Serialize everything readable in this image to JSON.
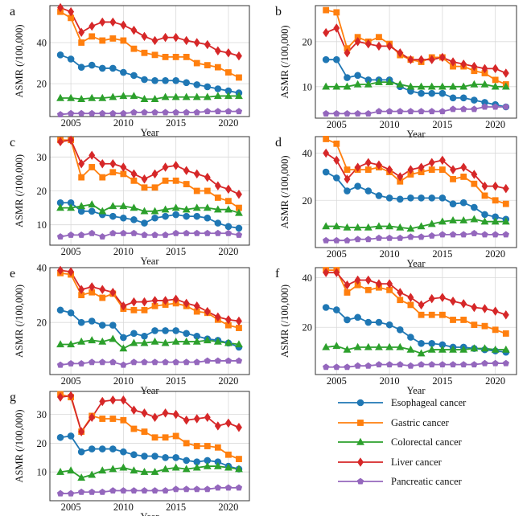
{
  "colors": {
    "Esophageal cancer": "#1f77b4",
    "Gastric cancer": "#ff7f0e",
    "Colorectal cancer": "#2ca02c",
    "Liver cancer": "#d62728",
    "Pancreatic cancer": "#9467bd"
  },
  "markers": {
    "Esophageal cancer": "circle",
    "Gastric cancer": "square",
    "Colorectal cancer": "triangle",
    "Liver cancer": "diamond",
    "Pancreatic cancer": "pentagon"
  },
  "legend": {
    "items": [
      "Esophageal cancer",
      "Gastric cancer",
      "Colorectal cancer",
      "Liver cancer",
      "Pancreatic cancer"
    ]
  },
  "chart_data": [
    {
      "type": "line",
      "panel_label": "a",
      "xlabel": "Year",
      "ylabel": "ASMR  (/100,000)",
      "xlim": [
        2003,
        2022
      ],
      "ylim": [
        4,
        58
      ],
      "xticks": [
        2005,
        2010,
        2015,
        2020
      ],
      "yticks": [
        20,
        40
      ],
      "ytick_labels": [
        "20",
        "40"
      ],
      "x": [
        2004,
        2005,
        2006,
        2007,
        2008,
        2009,
        2010,
        2011,
        2012,
        2013,
        2014,
        2015,
        2016,
        2017,
        2018,
        2019,
        2020,
        2021
      ],
      "series": [
        {
          "name": "Esophageal cancer",
          "values": [
            34,
            32,
            28,
            29,
            27.5,
            27.5,
            25.5,
            24,
            22,
            21.5,
            21.5,
            21.5,
            20.5,
            19.5,
            18.5,
            17.5,
            16.5,
            15.5
          ]
        },
        {
          "name": "Gastric cancer",
          "values": [
            55,
            52,
            40,
            43,
            41,
            42,
            41,
            37,
            35,
            34,
            33,
            33,
            33,
            30,
            29,
            28,
            25.5,
            23
          ]
        },
        {
          "name": "Colorectal cancer",
          "values": [
            13,
            13,
            12.5,
            13,
            13,
            13.5,
            14,
            14,
            12.5,
            12.5,
            13.5,
            13.5,
            13.5,
            13.5,
            13.5,
            14,
            14,
            14
          ]
        },
        {
          "name": "Liver cancer",
          "values": [
            57,
            55,
            45,
            48,
            50,
            50,
            48.5,
            46,
            43,
            41,
            42.5,
            42.5,
            41,
            40,
            39,
            36,
            35,
            33.5
          ]
        },
        {
          "name": "Pancreatic cancer",
          "values": [
            5,
            5.5,
            5.5,
            5.5,
            5.5,
            5.5,
            5.5,
            6,
            6,
            6,
            6,
            6,
            6,
            6,
            6.5,
            6.5,
            6.5,
            6.5
          ]
        }
      ]
    },
    {
      "type": "line",
      "panel_label": "b",
      "xlabel": "Year",
      "ylabel": "ASMR  (/100,000)",
      "xlim": [
        2003,
        2022
      ],
      "ylim": [
        3,
        28
      ],
      "xticks": [
        2005,
        2010,
        2015,
        2020
      ],
      "yticks": [
        10,
        20
      ],
      "ytick_labels": [
        "10",
        "20"
      ],
      "x": [
        2004,
        2005,
        2006,
        2007,
        2008,
        2009,
        2010,
        2011,
        2012,
        2013,
        2014,
        2015,
        2016,
        2017,
        2018,
        2019,
        2020,
        2021
      ],
      "series": [
        {
          "name": "Esophageal cancer",
          "values": [
            16,
            16,
            12,
            12.5,
            11.5,
            11.5,
            11.5,
            10,
            9,
            8.5,
            8.5,
            8.5,
            7.5,
            7.5,
            7,
            6.5,
            6,
            5.5
          ]
        },
        {
          "name": "Gastric cancer",
          "values": [
            27,
            26.5,
            18.5,
            21,
            20,
            21,
            19.5,
            17,
            16,
            15.5,
            16.5,
            16.5,
            14.5,
            14.5,
            13.5,
            13,
            11.5,
            10.5
          ]
        },
        {
          "name": "Colorectal cancer",
          "values": [
            10,
            10,
            10,
            10.5,
            10.5,
            11,
            11,
            10.5,
            10,
            10,
            10,
            10,
            10,
            10,
            10.5,
            10.5,
            10,
            10
          ]
        },
        {
          "name": "Liver cancer",
          "values": [
            22,
            23,
            17.5,
            20,
            19.5,
            19,
            19,
            17.5,
            16,
            16,
            16,
            16.5,
            15.5,
            15,
            14.5,
            14,
            14,
            13
          ]
        },
        {
          "name": "Pancreatic cancer",
          "values": [
            4,
            4,
            4,
            4,
            4,
            4.5,
            4.5,
            4.5,
            4.5,
            4.5,
            4.5,
            4.5,
            5,
            5,
            5,
            5.5,
            5.5,
            5.5
          ]
        }
      ]
    },
    {
      "type": "line",
      "panel_label": "c",
      "xlabel": "Year",
      "ylabel": "ASMR  (/100,000)",
      "xlim": [
        2003,
        2022
      ],
      "ylim": [
        4,
        36
      ],
      "xticks": [
        2005,
        2010,
        2015,
        2020
      ],
      "yticks": [
        10,
        20,
        30
      ],
      "ytick_labels": [
        "10",
        "20",
        "30"
      ],
      "x": [
        2004,
        2005,
        2006,
        2007,
        2008,
        2009,
        2010,
        2011,
        2012,
        2013,
        2014,
        2015,
        2016,
        2017,
        2018,
        2019,
        2020,
        2021
      ],
      "series": [
        {
          "name": "Esophageal cancer",
          "values": [
            16.5,
            16.5,
            14,
            14,
            13,
            12.5,
            12,
            11.5,
            10.5,
            12,
            12.5,
            13,
            12.5,
            12.5,
            12,
            10.5,
            9.5,
            9
          ]
        },
        {
          "name": "Gastric cancer",
          "values": [
            35,
            35,
            24,
            27,
            24,
            25.5,
            25,
            23,
            21,
            21,
            23,
            23,
            22,
            20,
            20,
            18,
            17,
            15
          ]
        },
        {
          "name": "Colorectal cancer",
          "values": [
            15,
            15,
            15.5,
            16,
            14,
            15.5,
            15.5,
            15,
            14,
            14,
            14.5,
            15,
            14.5,
            15,
            15,
            14.5,
            14.5,
            13.5
          ]
        },
        {
          "name": "Liver cancer",
          "values": [
            34.5,
            35,
            28,
            30.5,
            28,
            28,
            27,
            25,
            23.5,
            25,
            27,
            27.5,
            26,
            25,
            24,
            21.5,
            20.5,
            19
          ]
        },
        {
          "name": "Pancreatic cancer",
          "values": [
            6.5,
            7,
            7,
            7.5,
            6.5,
            7.5,
            7.5,
            7.5,
            7,
            7,
            7,
            7.5,
            7.5,
            7.5,
            7.5,
            7.5,
            7.5,
            7
          ]
        }
      ]
    },
    {
      "type": "line",
      "panel_label": "d",
      "xlabel": "Year",
      "ylabel": "ASMR  (/100,000)",
      "xlim": [
        2003,
        2022
      ],
      "ylim": [
        0,
        47
      ],
      "xticks": [
        2005,
        2010,
        2015,
        2020
      ],
      "yticks": [
        20,
        40
      ],
      "ytick_labels": [
        "20",
        "40"
      ],
      "x": [
        2004,
        2005,
        2006,
        2007,
        2008,
        2009,
        2010,
        2011,
        2012,
        2013,
        2014,
        2015,
        2016,
        2017,
        2018,
        2019,
        2020,
        2021
      ],
      "series": [
        {
          "name": "Esophageal cancer",
          "values": [
            32,
            29.5,
            24,
            26,
            24,
            22,
            21,
            20.5,
            21,
            21,
            21,
            21,
            18.5,
            19,
            17,
            14,
            13,
            12
          ]
        },
        {
          "name": "Gastric cancer",
          "values": [
            46,
            44,
            33,
            33,
            33,
            34,
            32,
            28,
            31,
            32,
            33,
            33,
            29,
            30,
            27,
            22,
            20,
            18.5
          ]
        },
        {
          "name": "Colorectal cancer",
          "values": [
            9,
            9,
            8.5,
            8.5,
            8.5,
            9,
            9,
            8.5,
            8,
            9,
            10,
            11,
            11.5,
            11.5,
            12,
            11,
            11,
            11
          ]
        },
        {
          "name": "Liver cancer",
          "values": [
            40,
            37,
            29,
            34,
            36,
            35,
            33,
            30,
            33,
            34,
            36,
            37,
            33,
            34,
            31,
            26,
            26,
            25
          ]
        },
        {
          "name": "Pancreatic cancer",
          "values": [
            3,
            3,
            3,
            3.5,
            3.5,
            4,
            4,
            4,
            4.5,
            4.5,
            5,
            5.5,
            5.5,
            5.5,
            6,
            5.5,
            5.5,
            5.5
          ]
        }
      ]
    },
    {
      "type": "line",
      "panel_label": "e",
      "xlabel": "Year",
      "ylabel": "ASMR  (/100,000)",
      "xlim": [
        2003,
        2022
      ],
      "ylim": [
        1,
        40
      ],
      "xticks": [
        2005,
        2010,
        2015,
        2020
      ],
      "yticks": [
        20,
        40
      ],
      "ytick_labels": [
        "20",
        "40"
      ],
      "x": [
        2004,
        2005,
        2006,
        2007,
        2008,
        2009,
        2010,
        2011,
        2012,
        2013,
        2014,
        2015,
        2016,
        2017,
        2018,
        2019,
        2020,
        2021
      ],
      "series": [
        {
          "name": "Esophageal cancer",
          "values": [
            24.5,
            23.5,
            20,
            20.5,
            19,
            19,
            14.5,
            16,
            15,
            17,
            17,
            17,
            16,
            15,
            14,
            13.5,
            12.5,
            11
          ]
        },
        {
          "name": "Gastric cancer",
          "values": [
            38,
            37.5,
            30,
            31,
            29,
            30.5,
            25,
            24.5,
            24.5,
            26,
            26.5,
            27,
            26,
            24,
            23.5,
            21,
            19,
            18
          ]
        },
        {
          "name": "Colorectal cancer",
          "values": [
            12,
            12,
            13,
            13.5,
            13,
            14,
            10.5,
            12.5,
            12.5,
            13,
            12.5,
            13,
            13,
            13,
            13.5,
            13,
            12.5,
            12
          ]
        },
        {
          "name": "Liver cancer",
          "values": [
            39,
            38.5,
            32,
            33,
            32,
            31,
            26,
            27.5,
            27.5,
            28,
            28,
            28.5,
            27,
            26,
            24,
            22,
            21,
            20.5
          ]
        },
        {
          "name": "Pancreatic cancer",
          "values": [
            4.5,
            5,
            5,
            5.5,
            5.5,
            5.5,
            4.5,
            5.5,
            5.5,
            5.5,
            5.5,
            5.5,
            5.5,
            5.5,
            6,
            6,
            6,
            6
          ]
        }
      ]
    },
    {
      "type": "line",
      "panel_label": "f",
      "xlabel": "Year",
      "ylabel": "ASMR  (/100,000)",
      "xlim": [
        2003,
        2022
      ],
      "ylim": [
        1,
        44
      ],
      "xticks": [
        2005,
        2010,
        2015,
        2020
      ],
      "yticks": [
        20,
        40
      ],
      "ytick_labels": [
        "20",
        "40"
      ],
      "x": [
        2004,
        2005,
        2006,
        2007,
        2008,
        2009,
        2010,
        2011,
        2012,
        2013,
        2014,
        2015,
        2016,
        2017,
        2018,
        2019,
        2020,
        2021
      ],
      "series": [
        {
          "name": "Esophageal cancer",
          "values": [
            28,
            27,
            23,
            24,
            22,
            22,
            21,
            19,
            16,
            13.5,
            13.5,
            13,
            12,
            12,
            11.5,
            11,
            10.5,
            10
          ]
        },
        {
          "name": "Gastric cancer",
          "values": [
            43,
            43,
            34,
            37,
            35,
            36,
            35,
            31,
            29,
            25,
            25,
            25,
            23,
            23,
            21,
            20.5,
            19,
            17.5
          ]
        },
        {
          "name": "Colorectal cancer",
          "values": [
            12,
            12.5,
            11,
            12,
            12,
            12,
            12,
            12,
            11,
            9.5,
            11,
            11,
            11,
            11,
            11.5,
            11.5,
            11,
            11
          ]
        },
        {
          "name": "Liver cancer",
          "values": [
            42,
            42,
            37,
            39,
            39,
            37.5,
            37.5,
            34,
            32,
            29,
            31.5,
            32,
            30.5,
            29.5,
            28,
            27.5,
            26.5,
            25
          ]
        },
        {
          "name": "Pancreatic cancer",
          "values": [
            4,
            4,
            4,
            4.5,
            4.5,
            5,
            5,
            5,
            4.5,
            5,
            5,
            5,
            5,
            5,
            5,
            5.5,
            5.5,
            5.5
          ]
        }
      ]
    },
    {
      "type": "line",
      "panel_label": "g",
      "xlabel": "Year",
      "ylabel": "ASMR  (/100,000)",
      "xlim": [
        2003,
        2022
      ],
      "ylim": [
        0,
        38
      ],
      "xticks": [
        2005,
        2010,
        2015,
        2020
      ],
      "yticks": [
        10,
        20,
        30
      ],
      "ytick_labels": [
        "10",
        "20",
        "30"
      ],
      "x": [
        2004,
        2005,
        2006,
        2007,
        2008,
        2009,
        2010,
        2011,
        2012,
        2013,
        2014,
        2015,
        2016,
        2017,
        2018,
        2019,
        2020,
        2021
      ],
      "series": [
        {
          "name": "Esophageal cancer",
          "values": [
            22,
            22.5,
            17,
            18,
            18,
            18,
            17,
            16,
            15.5,
            15.5,
            15,
            15,
            14,
            13.5,
            14,
            13.5,
            12,
            11
          ]
        },
        {
          "name": "Gastric cancer",
          "values": [
            37,
            36,
            24,
            29.5,
            28.5,
            28.5,
            28,
            25,
            24,
            22,
            22,
            22.5,
            20,
            19,
            19,
            18.5,
            16,
            14.5
          ]
        },
        {
          "name": "Colorectal cancer",
          "values": [
            10,
            10.5,
            8,
            9,
            10.5,
            11,
            11.5,
            10.5,
            10,
            10,
            11,
            11.5,
            11,
            11.5,
            12,
            12,
            11.5,
            11
          ]
        },
        {
          "name": "Liver cancer",
          "values": [
            36,
            36.5,
            24,
            29,
            34.5,
            35,
            35,
            31.5,
            30.5,
            29,
            30.5,
            30,
            28,
            28.5,
            29,
            26,
            27,
            25.5
          ]
        },
        {
          "name": "Pancreatic cancer",
          "values": [
            2.5,
            2.5,
            3,
            3,
            3,
            3.5,
            3.5,
            3.5,
            3.5,
            3.5,
            3.5,
            4,
            4,
            4,
            4,
            4.5,
            4.5,
            4.5
          ]
        }
      ]
    }
  ]
}
